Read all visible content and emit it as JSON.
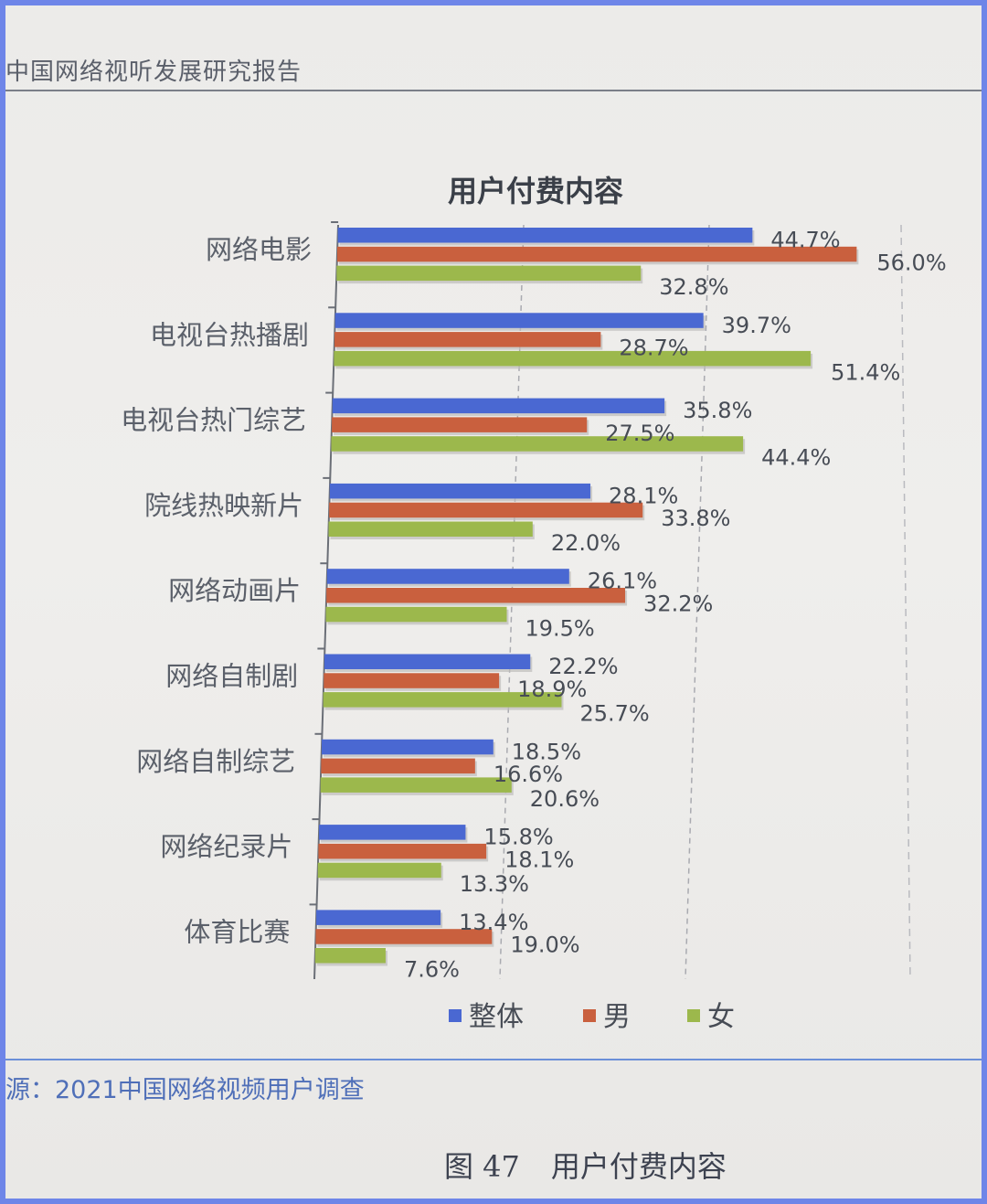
{
  "page": {
    "running_header": "中国网络视听发展研究报告",
    "source_text": "源：2021中国网络视频用户调查",
    "figure_number": "图 47",
    "figure_caption": "用户付费内容"
  },
  "chart_data": {
    "type": "bar",
    "orientation": "horizontal",
    "title": "用户付费内容",
    "categories": [
      "网络电影",
      "电视台热播剧",
      "电视台热门综艺",
      "院线热映新片",
      "网络动画片",
      "网络自制剧",
      "网络自制综艺",
      "网络纪录片",
      "体育比赛"
    ],
    "series": [
      {
        "name": "整体",
        "color": "#4a68d2",
        "values": [
          44.7,
          39.7,
          35.8,
          28.1,
          26.1,
          22.2,
          18.5,
          15.8,
          13.4
        ],
        "labels": [
          "44.7%",
          "39.7%",
          "35.8%",
          "28.1%",
          "26.1%",
          "22.2%",
          "18.5%",
          "15.8%",
          "13.4%"
        ]
      },
      {
        "name": "男",
        "color": "#c9603e",
        "values": [
          56.0,
          28.7,
          27.5,
          33.8,
          32.2,
          18.9,
          16.6,
          18.1,
          19.0
        ],
        "labels": [
          "56.0%",
          "28.7%",
          "27.5%",
          "33.8%",
          "32.2%",
          "18.9%",
          "16.6%",
          "18.1%",
          "19.0%"
        ]
      },
      {
        "name": "女",
        "color": "#9cb84c",
        "values": [
          32.8,
          51.4,
          44.4,
          22.0,
          19.5,
          25.7,
          20.6,
          13.3,
          7.6
        ],
        "labels": [
          "32.8%",
          "51.4%",
          "44.4%",
          "22.0%",
          "19.5%",
          "25.7%",
          "20.6%",
          "13.3%",
          "7.6%"
        ]
      }
    ],
    "xlim": [
      0,
      60
    ],
    "grid": "dashed vertical lines",
    "legend_position": "bottom"
  }
}
